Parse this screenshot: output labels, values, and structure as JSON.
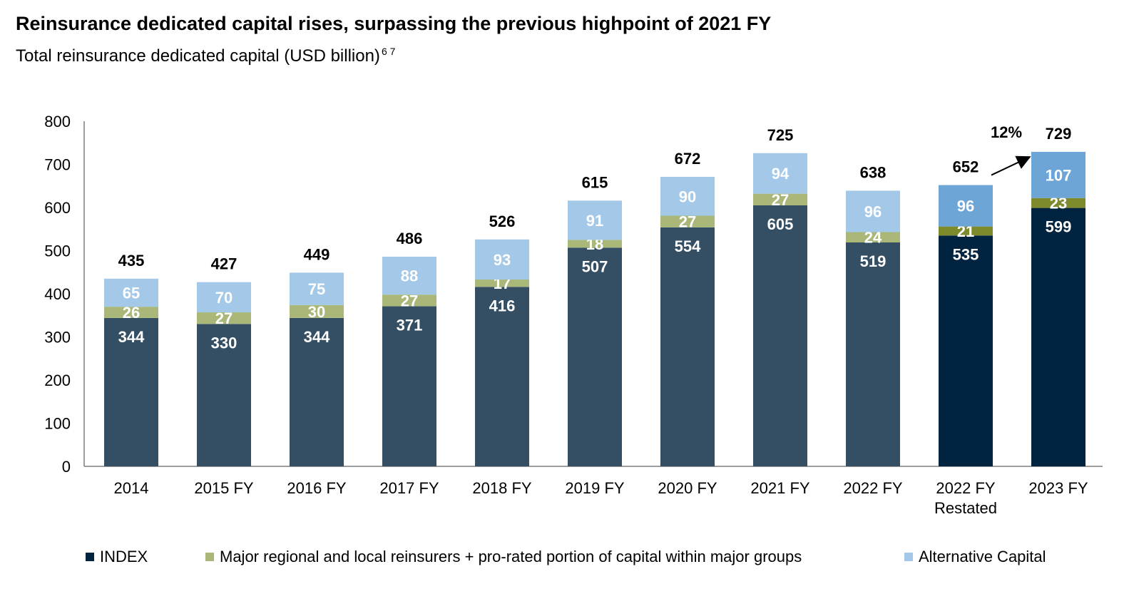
{
  "title": "Reinsurance dedicated capital rises, surpassing the previous highpoint of 2021 FY",
  "subtitle": "Total reinsurance dedicated capital (USD billion)",
  "subtitle_notes": "6 7",
  "colors": {
    "index": "#344f63",
    "index_highlight": "#00233f",
    "regional": "#a9b879",
    "regional_highlight": "#7f8a2c",
    "alternative": "#a3c8e8",
    "alternative_highlight": "#6da5d6"
  },
  "chart_data": {
    "type": "bar",
    "stacked": true,
    "categories": [
      "2014",
      "2015 FY",
      "2016 FY",
      "2017 FY",
      "2018 FY",
      "2019 FY",
      "2020 FY",
      "2021 FY",
      "2022 FY",
      "2022 FY\nRestated",
      "2023 FY"
    ],
    "series": [
      {
        "name": "INDEX",
        "values": [
          344,
          330,
          344,
          371,
          416,
          507,
          554,
          605,
          519,
          535,
          599
        ]
      },
      {
        "name": "Major regional and local reinsurers + pro-rated portion of capital within major groups",
        "values": [
          26,
          27,
          30,
          27,
          17,
          18,
          27,
          27,
          24,
          21,
          23
        ]
      },
      {
        "name": "Alternative Capital",
        "values": [
          65,
          70,
          75,
          88,
          93,
          91,
          90,
          94,
          96,
          96,
          107
        ]
      }
    ],
    "totals": [
      435,
      427,
      449,
      486,
      526,
      615,
      672,
      725,
      638,
      652,
      729
    ],
    "highlighted_categories": [
      9,
      10
    ],
    "annotation": {
      "text": "12%",
      "from_category": 9,
      "to_category": 10
    },
    "ylim": [
      0,
      800
    ],
    "yticks": [
      0,
      100,
      200,
      300,
      400,
      500,
      600,
      700,
      800
    ],
    "grid": false,
    "legend_position": "bottom"
  }
}
